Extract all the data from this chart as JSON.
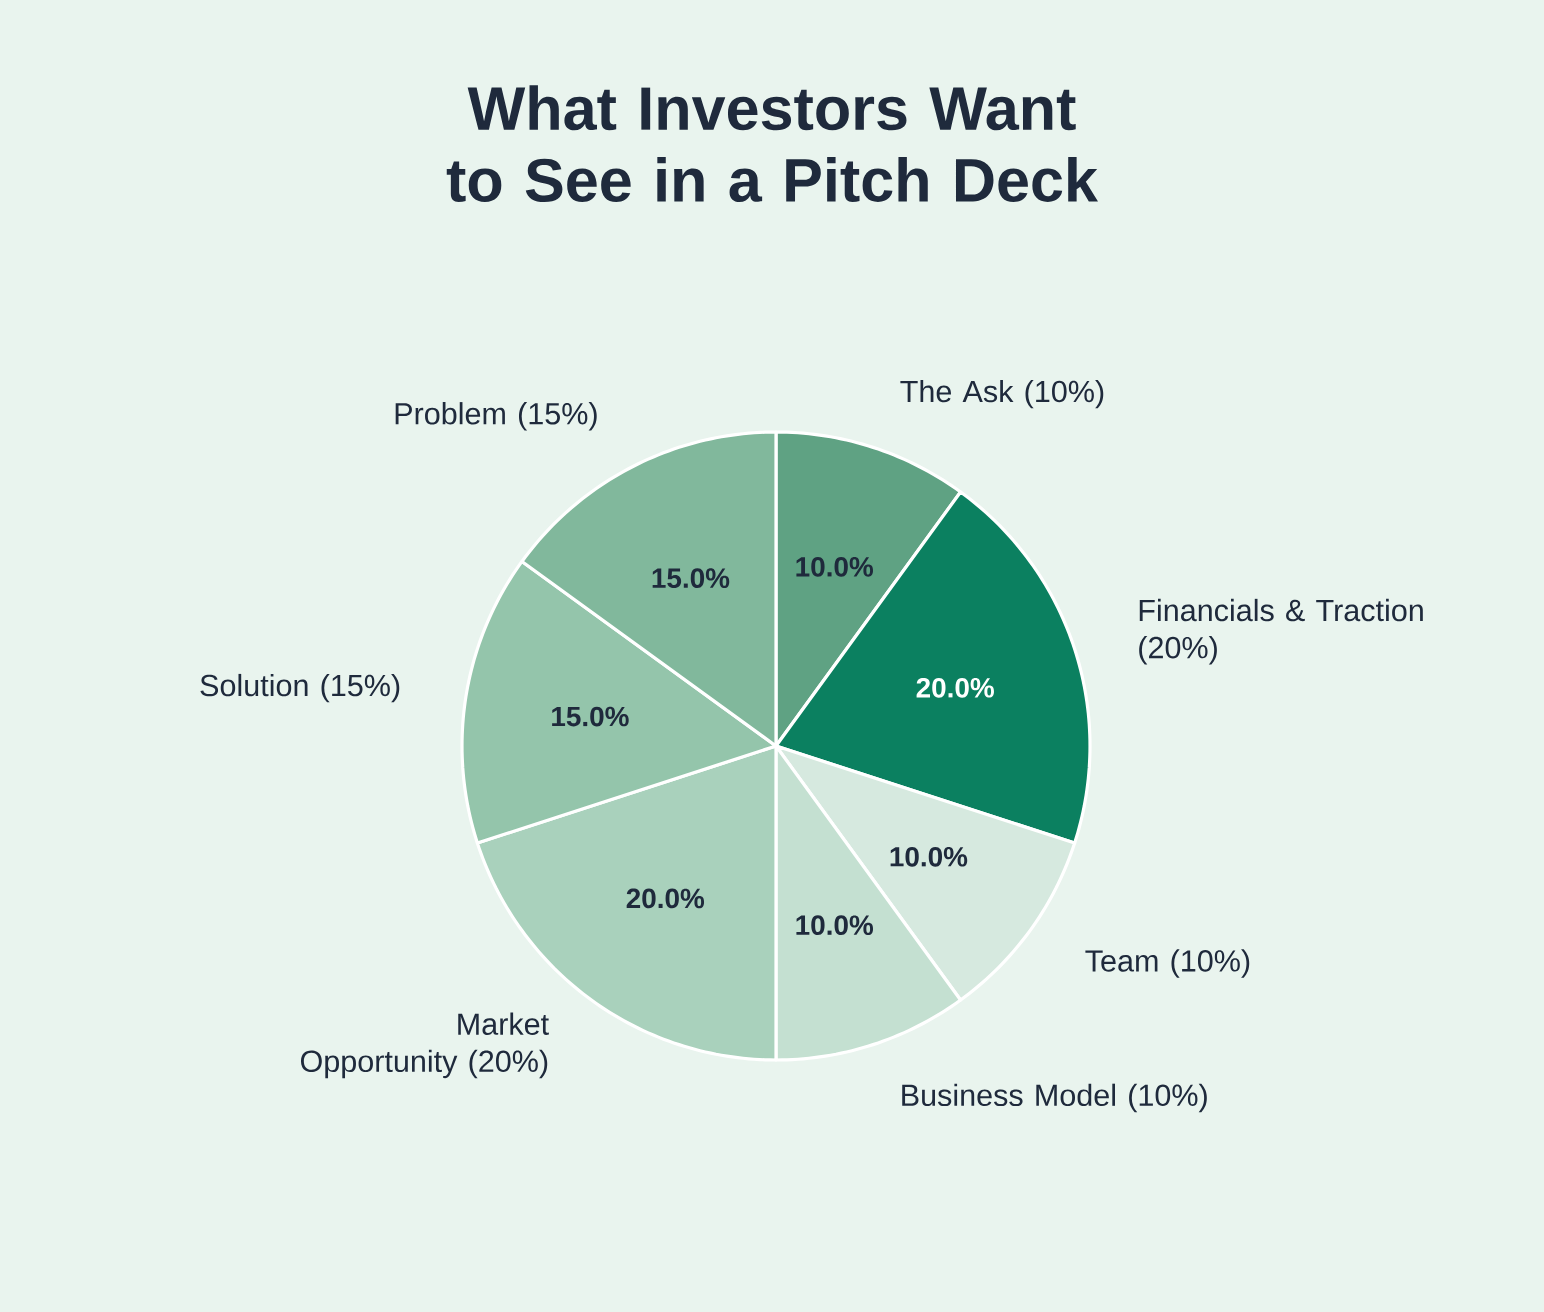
{
  "chart_data": {
    "type": "pie",
    "title": "What Investors Want to See in a Pitch Deck",
    "categories": [
      "The Ask (10%)",
      "Financials & Traction (20%)",
      "Team (10%)",
      "Business Model (10%)",
      "Market Opportunity (20%)",
      "Solution (15%)",
      "Problem (15%)"
    ],
    "values": [
      10,
      20,
      10,
      10,
      20,
      15,
      15
    ],
    "colors": [
      "#5fa283",
      "#0b8060",
      "#d6e9df",
      "#c4e0d1",
      "#a9d1bc",
      "#94c5ab",
      "#81b89c"
    ],
    "value_labels": [
      "10.0%",
      "20.0%",
      "10.0%",
      "10.0%",
      "20.0%",
      "15.0%",
      "15.0%"
    ]
  }
}
